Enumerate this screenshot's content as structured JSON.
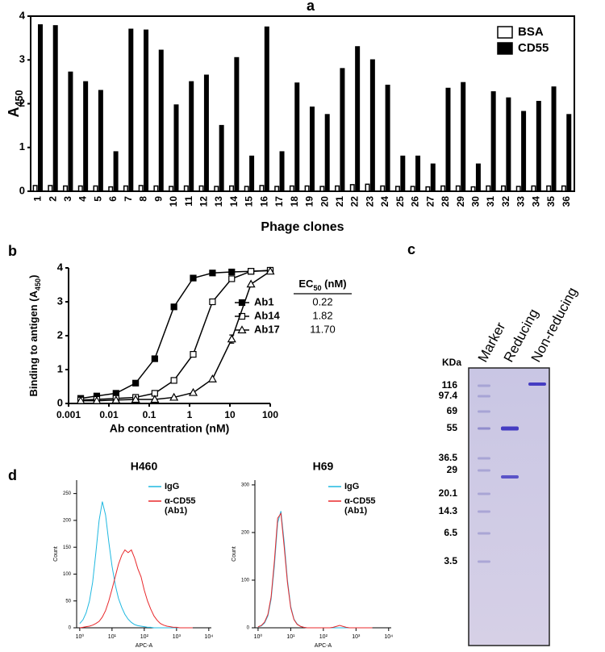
{
  "chart_data": [
    {
      "type": "bar",
      "panel": "a",
      "xlabel": "Phage clones",
      "ylabel": "A",
      "ylabel_subscript": "450",
      "categories": [
        "1",
        "2",
        "3",
        "4",
        "5",
        "6",
        "7",
        "8",
        "9",
        "10",
        "11",
        "12",
        "13",
        "14",
        "15",
        "16",
        "17",
        "18",
        "19",
        "20",
        "21",
        "22",
        "23",
        "24",
        "25",
        "26",
        "27",
        "28",
        "29",
        "30",
        "31",
        "32",
        "33",
        "34",
        "35",
        "36"
      ],
      "series": [
        {
          "name": "BSA",
          "color": "#ffffff",
          "values": [
            0.13,
            0.13,
            0.12,
            0.12,
            0.12,
            0.1,
            0.12,
            0.13,
            0.12,
            0.11,
            0.12,
            0.12,
            0.11,
            0.12,
            0.11,
            0.13,
            0.11,
            0.12,
            0.12,
            0.11,
            0.12,
            0.15,
            0.16,
            0.12,
            0.11,
            0.11,
            0.1,
            0.12,
            0.12,
            0.1,
            0.12,
            0.12,
            0.11,
            0.12,
            0.12,
            0.12
          ]
        },
        {
          "name": "CD55",
          "color": "#000000",
          "values": [
            3.8,
            3.78,
            2.72,
            2.5,
            2.3,
            0.9,
            3.7,
            3.68,
            3.22,
            1.97,
            2.5,
            2.65,
            1.5,
            3.05,
            0.8,
            3.75,
            0.9,
            2.47,
            1.92,
            1.75,
            2.8,
            3.3,
            3.0,
            2.42,
            0.8,
            0.8,
            0.62,
            2.35,
            2.48,
            0.62,
            2.27,
            2.13,
            1.82,
            2.05,
            2.38,
            1.75
          ]
        }
      ],
      "ylim": [
        0,
        4
      ],
      "yticks": [
        0,
        1,
        2,
        3,
        4
      ],
      "legend": "upper-right"
    },
    {
      "type": "line",
      "panel": "b",
      "xscale": "log",
      "xlabel": "Ab concentration (nM)",
      "ylabel": "Binding to antigen (A",
      "ylabel_subscript": "450",
      "ylabel_end": ")",
      "x": [
        0.002,
        0.005,
        0.015,
        0.046,
        0.137,
        0.41,
        1.23,
        3.7,
        11.1,
        33.3,
        100
      ],
      "series": [
        {
          "name": "Ab1",
          "color": "#000000",
          "marker": "square-filled",
          "values": [
            0.15,
            0.22,
            0.3,
            0.6,
            1.32,
            2.85,
            3.7,
            3.85,
            3.88,
            3.9,
            3.92
          ]
        },
        {
          "name": "Ab14",
          "color": "#000000",
          "marker": "square-open",
          "values": [
            0.1,
            0.12,
            0.15,
            0.18,
            0.3,
            0.68,
            1.45,
            3.0,
            3.68,
            3.9,
            3.93
          ]
        },
        {
          "name": "Ab17",
          "color": "#000000",
          "marker": "triangle-open",
          "values": [
            0.08,
            0.08,
            0.1,
            0.12,
            0.12,
            0.18,
            0.32,
            0.72,
            1.9,
            3.52,
            3.9
          ],
          "errors": [
            null,
            null,
            null,
            null,
            null,
            null,
            null,
            null,
            0.12,
            null,
            null
          ]
        }
      ],
      "xlim": [
        0.001,
        100
      ],
      "xticks": [
        0.001,
        0.01,
        0.1,
        1,
        10,
        100
      ],
      "ylim": [
        0,
        4
      ],
      "yticks": [
        0,
        1,
        2,
        3,
        4
      ],
      "ec50_header": "EC",
      "ec50_header_subscript": "50",
      "ec50_header_end": " (nM)",
      "ec50_labels": [
        "0.22",
        "1.82",
        "11.70"
      ]
    },
    {
      "type": "line",
      "panel": "d",
      "title": "H460",
      "xscale": "log",
      "xlabel": "APC-A",
      "ylabel": "Count",
      "x": [
        1,
        1.26,
        1.58,
        2,
        2.51,
        3.16,
        3.98,
        5.01,
        6.31,
        7.94,
        10,
        12.6,
        15.8,
        20,
        25.1,
        31.6,
        39.8,
        50.1,
        63.1,
        79.4,
        100,
        126,
        158,
        200,
        251,
        316,
        398,
        501,
        631,
        794,
        1000,
        1259,
        1585,
        1995,
        2512,
        3162
      ],
      "series": [
        {
          "name": "IgG",
          "color": "#1fb8e0",
          "values": [
            8,
            15,
            28,
            50,
            85,
            140,
            200,
            235,
            210,
            160,
            115,
            80,
            55,
            38,
            25,
            16,
            10,
            6,
            4,
            3,
            2,
            1,
            1,
            0,
            0,
            0,
            0,
            0,
            0,
            0,
            0,
            0,
            0,
            0,
            0,
            0
          ]
        },
        {
          "name": "α-CD55 (Ab1)",
          "color": "#e8282b",
          "values": [
            0,
            1,
            2,
            3,
            5,
            8,
            12,
            20,
            32,
            50,
            72,
            95,
            118,
            135,
            145,
            140,
            145,
            130,
            110,
            95,
            70,
            50,
            35,
            22,
            14,
            8,
            5,
            3,
            2,
            1,
            1,
            0,
            0,
            0,
            0,
            0
          ]
        }
      ],
      "xlim": [
        0.8,
        12000
      ],
      "xticks": [
        {
          "value": 1,
          "label": "10⁰"
        },
        {
          "value": 10,
          "label": "10¹"
        },
        {
          "value": 100,
          "label": "10²"
        },
        {
          "value": 1000,
          "label": "10³"
        },
        {
          "value": 10000,
          "label": "10⁴"
        }
      ],
      "ylim": [
        0,
        275
      ],
      "yticks": [
        0,
        50,
        100,
        150,
        200,
        250
      ]
    },
    {
      "type": "line",
      "title": "H69",
      "xscale": "log",
      "xlabel": "APC-A",
      "ylabel": "Count",
      "x": [
        1,
        1.26,
        1.58,
        2,
        2.51,
        3.16,
        3.98,
        5.01,
        6.31,
        7.94,
        10,
        12.6,
        15.8,
        20,
        25.1,
        31.6,
        39.8,
        50.1,
        63.1,
        79.4,
        100,
        126,
        158,
        200,
        251,
        316,
        398,
        501,
        631,
        794,
        1000,
        1259,
        1585,
        1995,
        2512,
        3162
      ],
      "series": [
        {
          "name": "IgG",
          "color": "#1fb8e0",
          "values": [
            2,
            4,
            10,
            25,
            60,
            130,
            220,
            245,
            180,
            100,
            45,
            18,
            8,
            3,
            1,
            0,
            0,
            0,
            0,
            0,
            0,
            0,
            0,
            0,
            0,
            0,
            0,
            0,
            0,
            0,
            0,
            0,
            0,
            0,
            0,
            0
          ]
        },
        {
          "name": "α-CD55 (Ab1)",
          "color": "#e8282b",
          "values": [
            2,
            5,
            12,
            28,
            65,
            140,
            230,
            240,
            170,
            95,
            42,
            17,
            7,
            3,
            1,
            0,
            0,
            0,
            0,
            0,
            0,
            0,
            0,
            1,
            3,
            5,
            3,
            1,
            0,
            0,
            0,
            0,
            0,
            0,
            0,
            0
          ]
        }
      ],
      "xlim": [
        0.8,
        12000
      ],
      "xticks": [
        {
          "value": 1,
          "label": "10⁰"
        },
        {
          "value": 10,
          "label": "10¹"
        },
        {
          "value": 100,
          "label": "10²"
        },
        {
          "value": 1000,
          "label": "10³"
        },
        {
          "value": 10000,
          "label": "10⁴"
        }
      ],
      "ylim": [
        0,
        310
      ],
      "yticks": [
        0,
        100,
        200,
        300
      ]
    }
  ],
  "gel": {
    "panel": "c",
    "lanes": [
      "Marker",
      "Reducing",
      "Non-reducing"
    ],
    "unit": "KDa",
    "ladder": [
      "116",
      "97.4",
      "69",
      "55",
      "36.5",
      "29",
      "20.1",
      "14.3",
      "6.5",
      "3.5"
    ]
  }
}
